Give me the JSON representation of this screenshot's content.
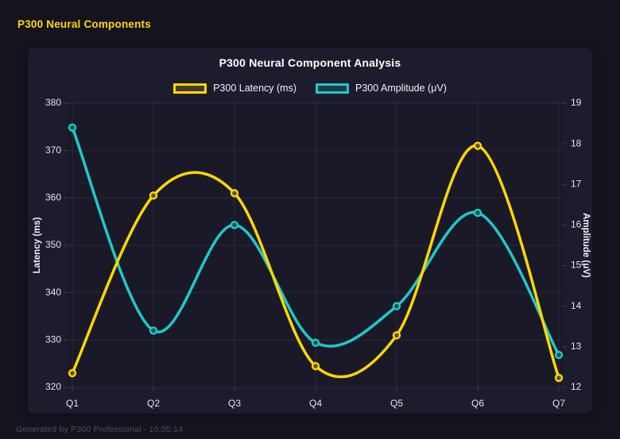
{
  "header": {
    "app_title": "P300 Neural Components"
  },
  "footer": {
    "generated_text": "Generated by P300 Professional - 10:05:14"
  },
  "colors": {
    "page_bg": "#14131E",
    "panel_bg": "#1D1C2D",
    "grid": "rgba(255,255,255,0.07)",
    "tick_stub": "rgba(255,255,255,0.16)",
    "latency": "#FFD700",
    "amplitude": "#1EC9C9",
    "title_text": "#FFFFFF",
    "accent_title": "#FFD700"
  },
  "chart_data": {
    "type": "line",
    "title": "P300 Neural Component Analysis",
    "categories": [
      "Q1",
      "Q2",
      "Q3",
      "Q4",
      "Q5",
      "Q6",
      "Q7"
    ],
    "series": [
      {
        "name": "P300 Latency (ms)",
        "axis": "left",
        "color": "#FFD700",
        "values": [
          323,
          360.5,
          361,
          324.5,
          331,
          371,
          322
        ]
      },
      {
        "name": "P300 Amplitude (μV)",
        "axis": "right",
        "color": "#1EC9C9",
        "values": [
          18.4,
          13.4,
          16.0,
          13.1,
          14.0,
          16.3,
          12.8
        ]
      }
    ],
    "left_axis": {
      "label": "Latency (ms)",
      "min": 320,
      "max": 380,
      "step": 10,
      "ticks": [
        380,
        370,
        360,
        350,
        340,
        330,
        320
      ]
    },
    "right_axis": {
      "label": "Amplitude (μV)",
      "min": 12,
      "max": 19,
      "step": 1,
      "ticks": [
        19,
        18,
        17,
        16,
        15,
        14,
        13,
        12
      ]
    },
    "grid": true,
    "legend_position": "top",
    "curve": "smooth"
  }
}
